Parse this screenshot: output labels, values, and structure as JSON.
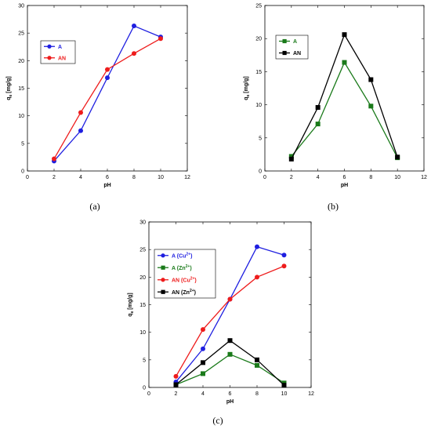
{
  "chart_data": [
    {
      "type": "line",
      "panel_label": "(a)",
      "xlabel": "pH",
      "ylabel_main": "q",
      "ylabel_sub": "e",
      "ylabel_unit": " [mg/g]",
      "xlim": [
        0,
        12
      ],
      "ylim": [
        0,
        30
      ],
      "xticks": [
        0,
        2,
        4,
        6,
        8,
        10,
        12
      ],
      "yticks": [
        0,
        5,
        10,
        15,
        20,
        25,
        30
      ],
      "legend_position": "upper-left",
      "series": [
        {
          "name": "A",
          "name_sup": "",
          "color": "#1f1fe0",
          "marker": "circle",
          "x": [
            2,
            4,
            6,
            8,
            10
          ],
          "values": [
            1.8,
            7.3,
            16.9,
            26.3,
            24.3
          ]
        },
        {
          "name": "AN",
          "name_sup": "",
          "color": "#ee1c1c",
          "marker": "circle",
          "x": [
            2,
            4,
            6,
            8,
            10
          ],
          "values": [
            2.2,
            10.6,
            18.4,
            21.3,
            24.0
          ]
        }
      ]
    },
    {
      "type": "line",
      "panel_label": "(b)",
      "xlabel": "pH",
      "ylabel_main": "q",
      "ylabel_sub": "e",
      "ylabel_unit": " [mg/g]",
      "xlim": [
        0,
        12
      ],
      "ylim": [
        0,
        25
      ],
      "xticks": [
        0,
        2,
        4,
        6,
        8,
        10,
        12
      ],
      "yticks": [
        0,
        5,
        10,
        15,
        20,
        25
      ],
      "legend_position": "upper-left",
      "series": [
        {
          "name": "A",
          "name_sup": "",
          "color": "#1a7a1a",
          "marker": "square",
          "x": [
            2,
            4,
            6,
            8,
            10
          ],
          "values": [
            2.2,
            7.1,
            16.4,
            9.8,
            2.0
          ]
        },
        {
          "name": "AN",
          "name_sup": "",
          "color": "#000000",
          "marker": "square",
          "x": [
            2,
            4,
            6,
            8,
            10
          ],
          "values": [
            1.8,
            9.6,
            20.6,
            13.8,
            2.1
          ]
        }
      ]
    },
    {
      "type": "line",
      "panel_label": "(c)",
      "xlabel": "pH",
      "ylabel_main": "q",
      "ylabel_sub": "e",
      "ylabel_unit": " [mg/g]",
      "xlim": [
        0,
        12
      ],
      "ylim": [
        0,
        30
      ],
      "xticks": [
        0,
        2,
        4,
        6,
        8,
        10,
        12
      ],
      "yticks": [
        0,
        5,
        10,
        15,
        20,
        25,
        30
      ],
      "legend_position": "upper-left",
      "series": [
        {
          "name": "A (Cu",
          "name_sup": "2+",
          "name_end": ")",
          "color": "#1f1fe0",
          "marker": "circle",
          "x": [
            2,
            4,
            6,
            8,
            10
          ],
          "values": [
            1.0,
            7.0,
            16.0,
            25.5,
            24.0
          ]
        },
        {
          "name": "A (Zn",
          "name_sup": "2+",
          "name_end": ")",
          "color": "#1a7a1a",
          "marker": "square",
          "x": [
            2,
            4,
            6,
            8,
            10
          ],
          "values": [
            0.5,
            2.5,
            6.0,
            4.0,
            0.8
          ]
        },
        {
          "name": "AN (Cu",
          "name_sup": "2+",
          "name_end": ")",
          "color": "#ee1c1c",
          "marker": "circle",
          "x": [
            2,
            4,
            6,
            8,
            10
          ],
          "values": [
            2.0,
            10.5,
            16.0,
            20.0,
            22.0
          ]
        },
        {
          "name": "AN (Zn",
          "name_sup": "2+",
          "name_end": ")",
          "color": "#000000",
          "marker": "square",
          "x": [
            2,
            4,
            6,
            8,
            10
          ],
          "values": [
            0.5,
            4.5,
            8.5,
            5.0,
            0.4
          ]
        }
      ]
    }
  ]
}
